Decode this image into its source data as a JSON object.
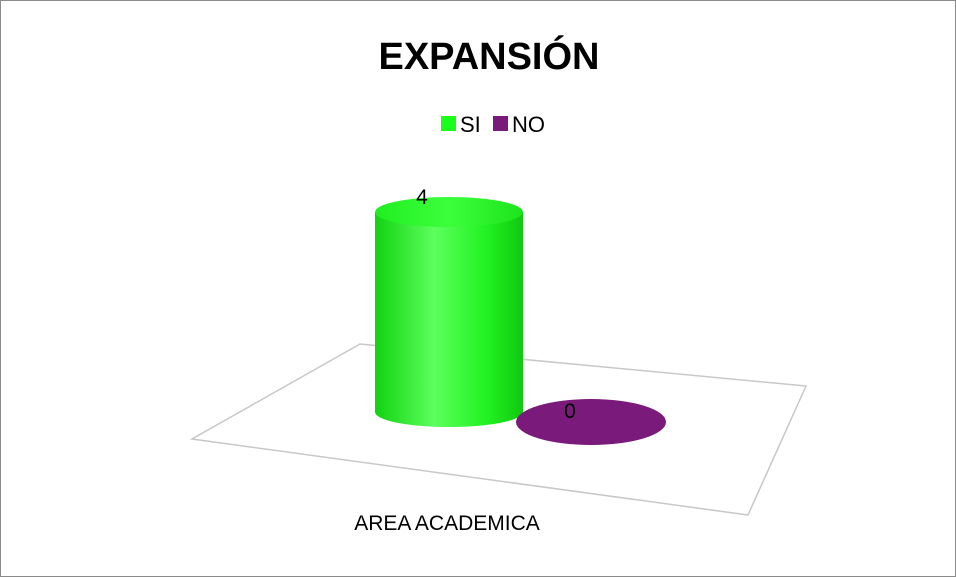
{
  "chart_data": {
    "type": "bar",
    "title": "EXPANSIÓN",
    "categories": [
      "AREA ACADEMICA"
    ],
    "series": [
      {
        "name": "SI",
        "values": [
          4
        ],
        "color": "#19ff19"
      },
      {
        "name": "NO",
        "values": [
          0
        ],
        "color": "#7a1a7a"
      }
    ],
    "data_labels": [
      "4",
      "0"
    ],
    "legend_position": "top",
    "style": "3d-cylinder",
    "grid": false,
    "ylim": [
      0,
      4
    ]
  }
}
